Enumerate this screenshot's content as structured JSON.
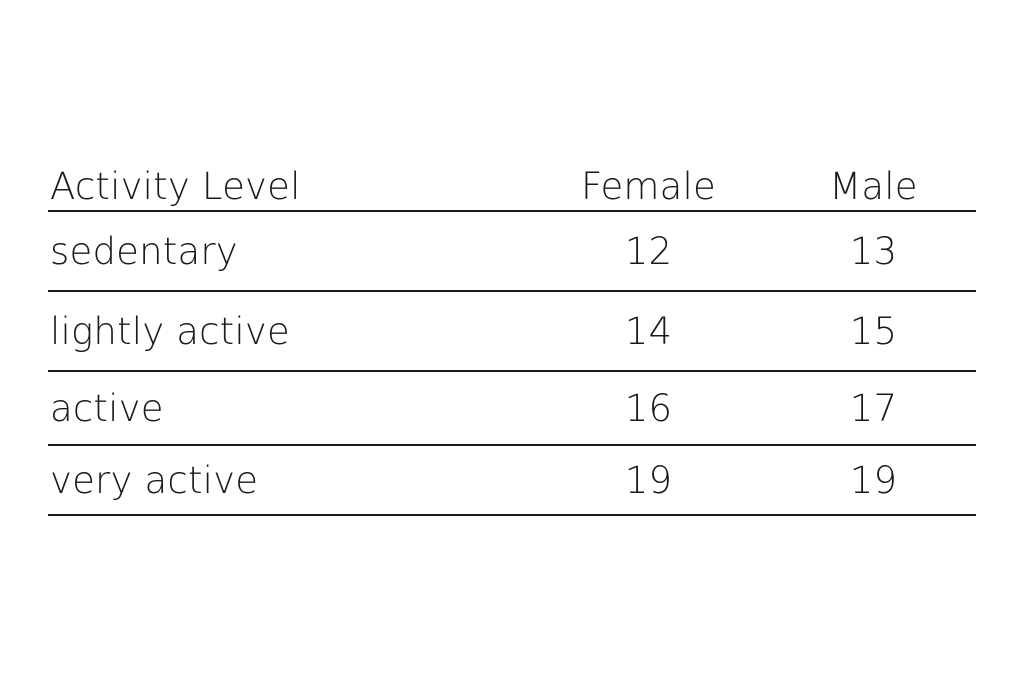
{
  "table": {
    "columns": [
      "Activity Level",
      "Female",
      "Male"
    ],
    "rows": [
      {
        "level": "sedentary",
        "female": "12",
        "male": "13"
      },
      {
        "level": "lightly active",
        "female": "14",
        "male": "15"
      },
      {
        "level": "active",
        "female": "16",
        "male": "17"
      },
      {
        "level": "very active",
        "female": "19",
        "male": "19"
      }
    ]
  }
}
